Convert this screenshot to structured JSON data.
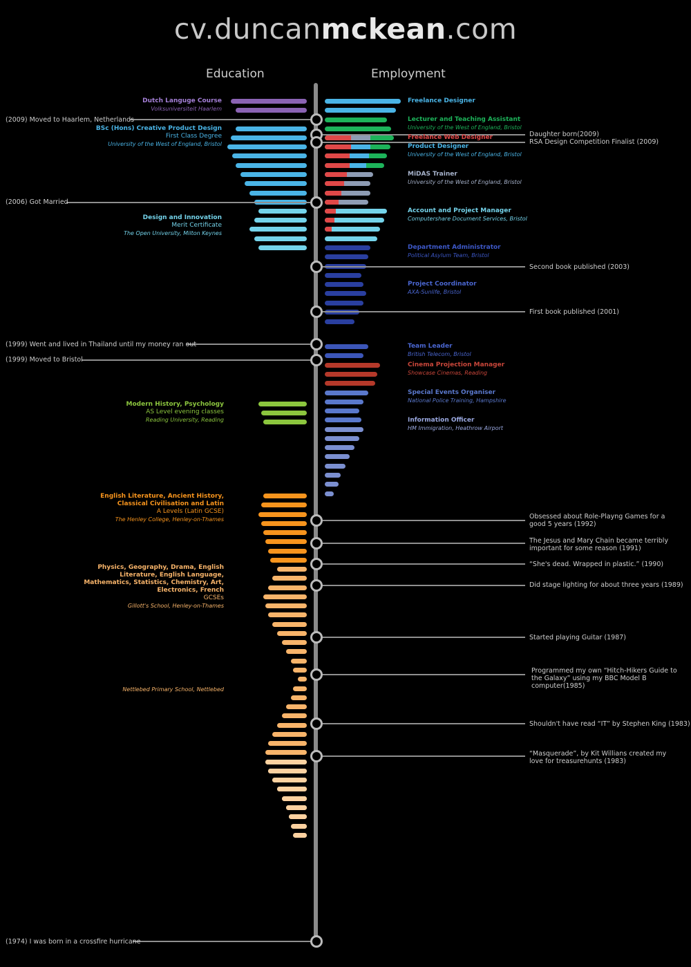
{
  "title": {
    "prefix": "cv.duncan",
    "bold": "mckean",
    "suffix": ".com"
  },
  "headers": {
    "education": "Education",
    "employment": "Employment"
  },
  "colors": {
    "purple": "#8b63b4",
    "blue": "#4ab4e6",
    "lightblue": "#74d3ea",
    "green": "#1db35a",
    "red": "#e04848",
    "grey": "#8e9cb4",
    "navy": "#2a3fa0",
    "royal": "#3c56b8",
    "rust": "#b5392a",
    "periwinkle": "#7b8fd0",
    "lime": "#8cc63e",
    "orange": "#f7941d",
    "peach": "#f8b46a",
    "cream": "#fcd1a0"
  },
  "education": [
    {
      "title": "Dutch Languge Course",
      "sub": "",
      "place": "Volksuniversiteit Haarlem",
      "color": "#9b6ccc"
    },
    {
      "title": "BSc (Hons) Creative Product Design",
      "sub": "First Class Degree",
      "place": "University of the West of England, Bristol",
      "color": "#4ab4e6"
    },
    {
      "title": "Design and Innovation",
      "sub": "Merit Certificate",
      "place": "The Open University, Milton Keynes",
      "color": "#74d3ea"
    },
    {
      "title": "Modern History, Psychology",
      "sub": "AS Level evening classes",
      "place": "Reading University, Reading",
      "color": "#8cc63e"
    },
    {
      "title": "English Literature, Ancient History, Classical Civilisation and Latin",
      "sub": "A Levels (Latin GCSE)",
      "place": "The Henley College, Henley-on-Thames",
      "color": "#f7941d"
    },
    {
      "title": "Physics, Geography, Drama, English Literature, English Language, Mathematics, Statistics, Chemistry, Art, Electronics, French",
      "sub": "GCSEs",
      "place": "Gillott's School, Henley-on-Thames",
      "color": "#f8b46a"
    },
    {
      "title": "",
      "sub": "",
      "place": "Nettlebed Primary School, Nettlebed",
      "color": "#f8b46a"
    }
  ],
  "employment": [
    {
      "title": "Freelance Designer",
      "place": "",
      "color": "#4ab4e6"
    },
    {
      "title": "Lecturer and Teaching Assistant",
      "place": "University of the West of England, Bristol",
      "color": "#1db35a"
    },
    {
      "title": "Freelance Web Designer",
      "place": "",
      "color": "#e04848"
    },
    {
      "title": "Product Designer",
      "place": "University of the West of England, Bristol",
      "color": "#4ab4e6"
    },
    {
      "title": "MiDAS Trainer",
      "place": "University of the West of England, Bristol",
      "color": "#8e9cb4"
    },
    {
      "title": "Account and Project Manager",
      "place": "Computershare Document Services, Bristol",
      "color": "#74d3ea"
    },
    {
      "title": "Department Administrator",
      "place": "Political Asylum Team, Bristol",
      "color": "#2a3fa0"
    },
    {
      "title": "Project Coordinator",
      "place": "AXA-Sunlife, Bristol",
      "color": "#3c56b8"
    },
    {
      "title": "Team Leader",
      "place": "British Telecom, Bristol",
      "color": "#3c56b8"
    },
    {
      "title": "Cinema Projection Manager",
      "place": "Showcase Cinemas, Reading",
      "color": "#b5392a"
    },
    {
      "title": "Special Events Organiser",
      "place": "National Police Training, Hampshire",
      "color": "#5a78cc"
    },
    {
      "title": "Information Officer",
      "place": "HM Immigration, Heathrow Airport",
      "color": "#7b8fd0"
    }
  ],
  "left_events": [
    "(2009) Moved to Haarlem, Netherlands",
    "(2006) Got Married",
    "(1999) Went and lived in Thailand until my money ran out",
    "(1999) Moved to Bristol",
    "(1974) I was born in a crossfire hurricane"
  ],
  "right_events": [
    "Daughter born(2009)",
    "RSA Design Competition Finalist (2009)",
    "Second book published (2003)",
    "First book published (2001)",
    "Obsessed about Role-Playng Games for a good 5 years (1992)",
    "The Jesus and Mary Chain became terribly important for some reason (1991)",
    "“She's dead. Wrapped in plastic.” (1990)",
    "Did stage lighting for about three years (1989)",
    "Started playing Guitar (1987)",
    "Programmed my own “Hitch-Hikers Guide to the Galaxy” using my BBC Model B computer(1985)",
    "Shouldn't have read “IT” by Stephen King (1983)",
    "“Masquerade”, by Kit Willians created my love for treasurehunts (1983)"
  ]
}
